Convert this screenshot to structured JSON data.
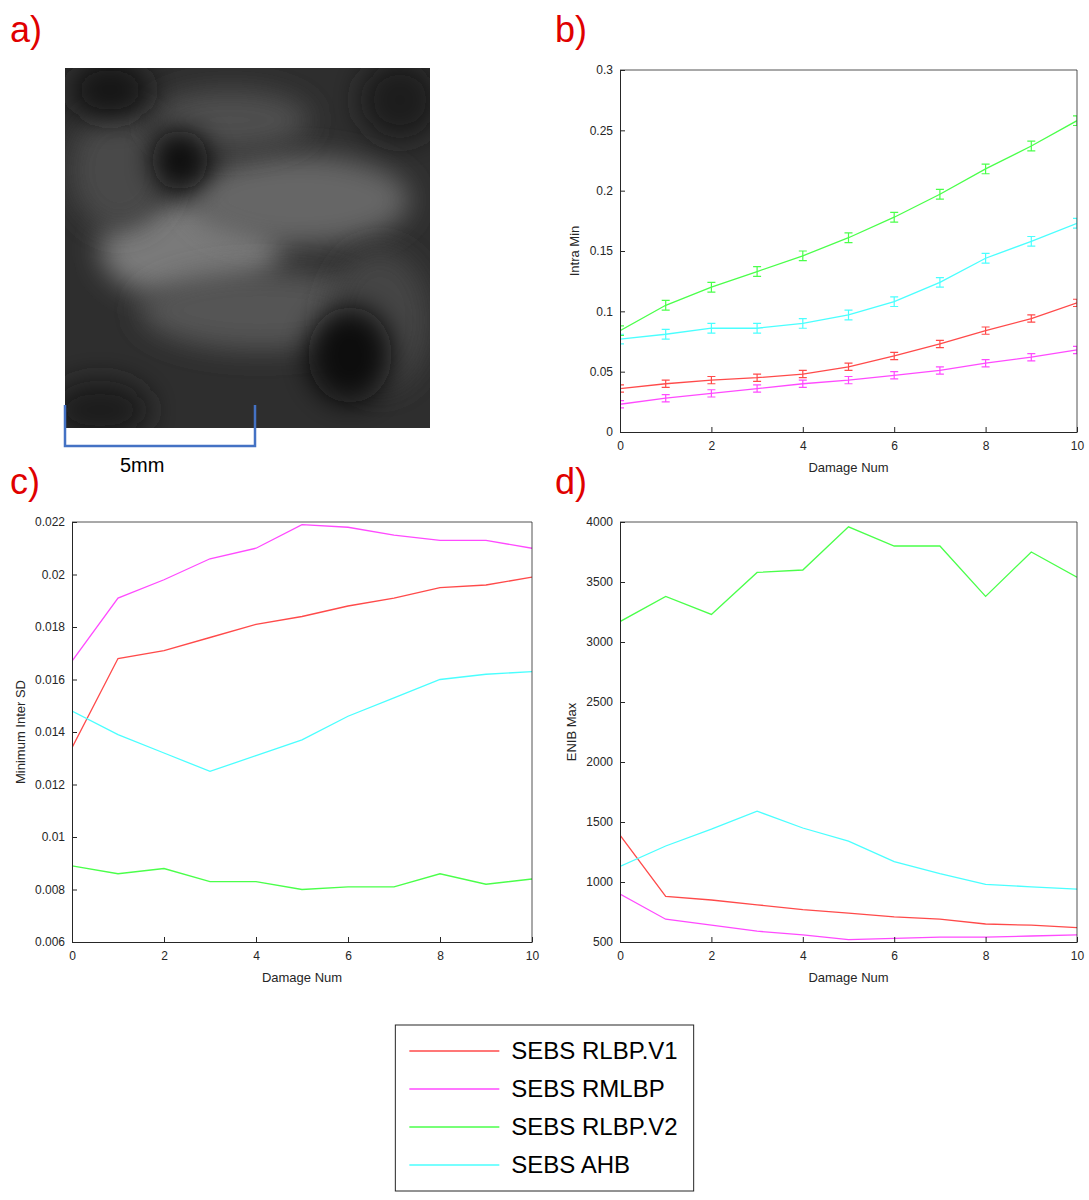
{
  "image_panel": {
    "label": "a)",
    "scale_bar": "5mm"
  },
  "chart_data": [
    {
      "panel": "b)",
      "type": "line",
      "xlabel": "Damage Num",
      "ylabel": "Intra Min",
      "x": [
        0,
        1,
        2,
        3,
        4,
        5,
        6,
        7,
        8,
        9,
        10
      ],
      "xlim": [
        0,
        10
      ],
      "xticks": [
        0,
        2,
        4,
        6,
        8,
        10
      ],
      "ylim": [
        0,
        0.3
      ],
      "yticks": [
        0,
        0.05,
        0.1,
        0.15,
        0.2,
        0.25,
        0.3
      ],
      "legend": "bottom",
      "series": [
        {
          "name": "SEBS RLBP.V1",
          "color": "#ff4a4a",
          "values": [
            0.036,
            0.04,
            0.043,
            0.045,
            0.048,
            0.054,
            0.063,
            0.073,
            0.084,
            0.094,
            0.107
          ],
          "errors": [
            0.003,
            0.003,
            0.003,
            0.003,
            0.003,
            0.003,
            0.003,
            0.003,
            0.003,
            0.003,
            0.003
          ]
        },
        {
          "name": "SEBS RMLBP",
          "color": "#ff4aff",
          "values": [
            0.023,
            0.028,
            0.032,
            0.036,
            0.04,
            0.043,
            0.047,
            0.051,
            0.057,
            0.062,
            0.068
          ],
          "errors": [
            0.003,
            0.003,
            0.003,
            0.003,
            0.003,
            0.003,
            0.003,
            0.003,
            0.003,
            0.003,
            0.003
          ]
        },
        {
          "name": "SEBS RLBP.V2",
          "color": "#4aff4a",
          "values": [
            0.084,
            0.105,
            0.12,
            0.133,
            0.146,
            0.161,
            0.178,
            0.197,
            0.218,
            0.237,
            0.258
          ],
          "errors": [
            0.004,
            0.004,
            0.004,
            0.004,
            0.004,
            0.004,
            0.004,
            0.004,
            0.004,
            0.004,
            0.004
          ]
        },
        {
          "name": "SEBS AHB",
          "color": "#4affff",
          "values": [
            0.077,
            0.081,
            0.086,
            0.086,
            0.09,
            0.097,
            0.108,
            0.124,
            0.144,
            0.158,
            0.173
          ],
          "errors": [
            0.004,
            0.004,
            0.004,
            0.004,
            0.004,
            0.004,
            0.004,
            0.004,
            0.004,
            0.004,
            0.004
          ]
        }
      ]
    },
    {
      "panel": "c)",
      "type": "line",
      "xlabel": "Damage Num",
      "ylabel": "Minimum Inter SD",
      "x": [
        0,
        1,
        2,
        3,
        4,
        5,
        6,
        7,
        8,
        9,
        10
      ],
      "xlim": [
        0,
        10
      ],
      "xticks": [
        0,
        2,
        4,
        6,
        8,
        10
      ],
      "ylim": [
        0.006,
        0.022
      ],
      "yticks": [
        0.006,
        0.008,
        0.01,
        0.012,
        0.014,
        0.016,
        0.018,
        0.02,
        0.022
      ],
      "series": [
        {
          "name": "SEBS RLBP.V1",
          "color": "#ff4a4a",
          "values": [
            0.0134,
            0.0168,
            0.0171,
            0.0176,
            0.0181,
            0.0184,
            0.0188,
            0.0191,
            0.0195,
            0.0196,
            0.0199
          ]
        },
        {
          "name": "SEBS RMLBP",
          "color": "#ff4aff",
          "values": [
            0.0167,
            0.0191,
            0.0198,
            0.0206,
            0.021,
            0.0219,
            0.0218,
            0.0215,
            0.0213,
            0.0213,
            0.021
          ]
        },
        {
          "name": "SEBS RLBP.V2",
          "color": "#4aff4a",
          "values": [
            0.0089,
            0.0086,
            0.0088,
            0.0083,
            0.0083,
            0.008,
            0.0081,
            0.0081,
            0.0086,
            0.0082,
            0.0084
          ]
        },
        {
          "name": "SEBS AHB",
          "color": "#4affff",
          "values": [
            0.0148,
            0.0139,
            0.0132,
            0.0125,
            0.0131,
            0.0137,
            0.0146,
            0.0153,
            0.016,
            0.0162,
            0.0163
          ]
        }
      ]
    },
    {
      "panel": "d)",
      "type": "line",
      "xlabel": "Damage Num",
      "ylabel": "ENIB Max",
      "x": [
        0,
        1,
        2,
        3,
        4,
        5,
        6,
        7,
        8,
        9,
        10
      ],
      "xlim": [
        0,
        10
      ],
      "xticks": [
        0,
        2,
        4,
        6,
        8,
        10
      ],
      "ylim": [
        500,
        4000
      ],
      "yticks": [
        500,
        1000,
        1500,
        2000,
        2500,
        3000,
        3500,
        4000
      ],
      "series": [
        {
          "name": "SEBS RLBP.V1",
          "color": "#ff4a4a",
          "values": [
            1390,
            880,
            850,
            810,
            770,
            740,
            710,
            690,
            650,
            640,
            620
          ]
        },
        {
          "name": "SEBS RMLBP",
          "color": "#ff4aff",
          "values": [
            900,
            690,
            640,
            590,
            560,
            520,
            530,
            540,
            540,
            550,
            560
          ]
        },
        {
          "name": "SEBS RLBP.V2",
          "color": "#4aff4a",
          "values": [
            3170,
            3380,
            3230,
            3580,
            3600,
            3960,
            3800,
            3800,
            3380,
            3750,
            3540
          ]
        },
        {
          "name": "SEBS AHB",
          "color": "#4affff",
          "values": [
            1130,
            1300,
            1440,
            1590,
            1450,
            1340,
            1170,
            1070,
            980,
            960,
            940
          ]
        }
      ]
    }
  ]
}
